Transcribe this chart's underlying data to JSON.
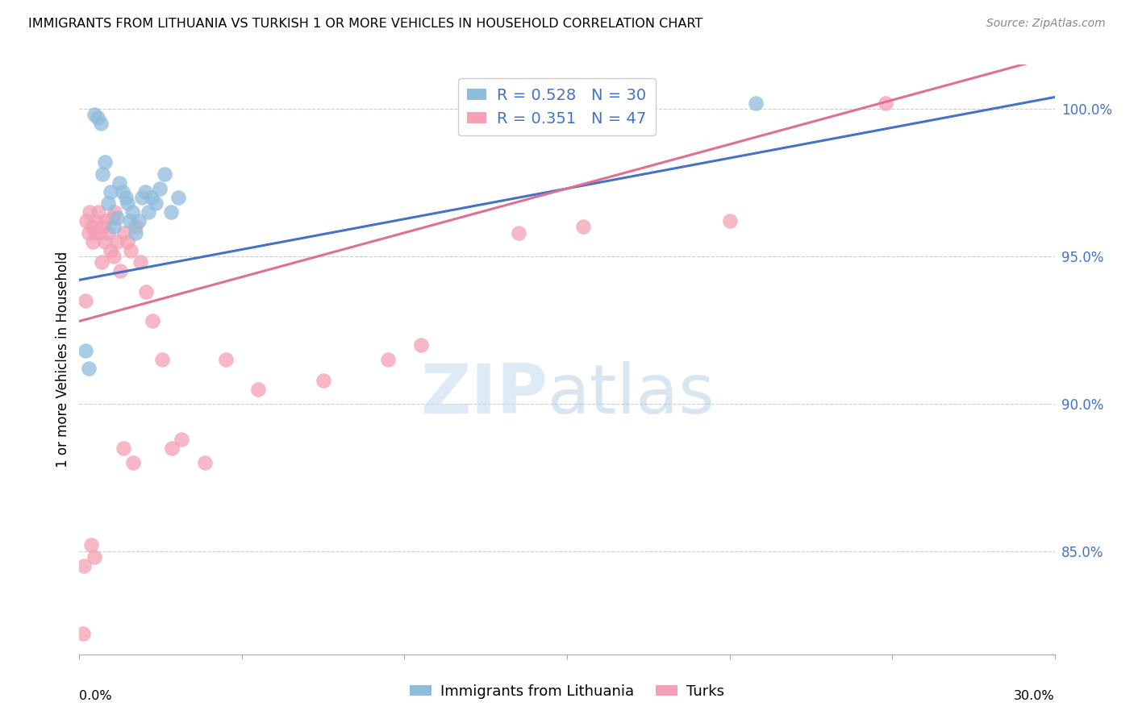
{
  "title": "IMMIGRANTS FROM LITHUANIA VS TURKISH 1 OR MORE VEHICLES IN HOUSEHOLD CORRELATION CHART",
  "source": "Source: ZipAtlas.com",
  "ylabel": "1 or more Vehicles in Household",
  "legend_label1": "Immigrants from Lithuania",
  "legend_label2": "Turks",
  "R1": 0.528,
  "N1": 30,
  "R2": 0.351,
  "N2": 47,
  "color_blue": "#8fbcdb",
  "color_pink": "#f4a0b5",
  "color_blue_line": "#4472c4",
  "color_pink_line": "#e07090",
  "y_min": 81.5,
  "y_max": 101.5,
  "x_min": 0.0,
  "x_max": 30.0,
  "ytick_vals": [
    85.0,
    90.0,
    95.0,
    100.0
  ],
  "blue_line_y0": 94.2,
  "blue_line_y1": 100.4,
  "pink_line_y0": 92.8,
  "pink_line_y1": 101.8,
  "blue_points_x": [
    0.18,
    0.28,
    0.45,
    0.55,
    0.65,
    0.72,
    0.78,
    0.88,
    0.95,
    1.05,
    1.15,
    1.22,
    1.32,
    1.42,
    1.48,
    1.55,
    1.62,
    1.72,
    1.82,
    1.92,
    2.02,
    2.12,
    2.22,
    2.35,
    2.48,
    2.62,
    2.82,
    3.05,
    14.5,
    20.8
  ],
  "blue_points_y": [
    91.8,
    91.2,
    99.8,
    99.7,
    99.5,
    97.8,
    98.2,
    96.8,
    97.2,
    96.0,
    96.3,
    97.5,
    97.2,
    97.0,
    96.8,
    96.2,
    96.5,
    95.8,
    96.2,
    97.0,
    97.2,
    96.5,
    97.0,
    96.8,
    97.3,
    97.8,
    96.5,
    97.0,
    100.1,
    100.2
  ],
  "pink_points_x": [
    0.12,
    0.18,
    0.22,
    0.28,
    0.32,
    0.38,
    0.42,
    0.48,
    0.52,
    0.58,
    0.62,
    0.68,
    0.72,
    0.78,
    0.82,
    0.88,
    0.95,
    1.02,
    1.08,
    1.15,
    1.25,
    1.38,
    1.48,
    1.58,
    1.72,
    1.88,
    2.05,
    2.25,
    2.55,
    2.85,
    3.15,
    3.85,
    4.5,
    5.5,
    7.5,
    9.5,
    10.5,
    13.5,
    15.5,
    20.0,
    24.8,
    0.15,
    0.35,
    0.45,
    1.05,
    1.35,
    1.65
  ],
  "pink_points_y": [
    82.2,
    93.5,
    96.2,
    95.8,
    96.5,
    96.0,
    95.5,
    95.8,
    96.2,
    96.5,
    95.8,
    94.8,
    96.0,
    95.5,
    96.2,
    95.8,
    95.2,
    96.3,
    96.5,
    95.5,
    94.5,
    95.8,
    95.5,
    95.2,
    96.0,
    94.8,
    93.8,
    92.8,
    91.5,
    88.5,
    88.8,
    88.0,
    91.5,
    90.5,
    90.8,
    91.5,
    92.0,
    95.8,
    96.0,
    96.2,
    100.2,
    84.5,
    85.2,
    84.8,
    95.0,
    88.5,
    88.0
  ]
}
